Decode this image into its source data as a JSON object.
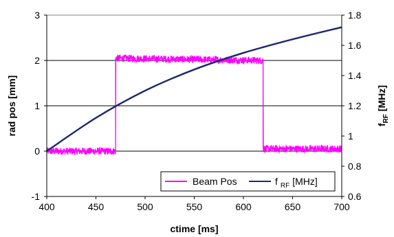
{
  "chart_data": {
    "type": "line",
    "title": "",
    "xlabel": "ctime [ms]",
    "ylabel_left": "rad pos [mm]",
    "ylabel_right_base": "f",
    "ylabel_right_sub": "RF",
    "ylabel_right_unit": "[MHz]",
    "xlim": [
      400,
      700
    ],
    "ylim_left": [
      -1,
      3
    ],
    "ylim_right": [
      0.6,
      1.8
    ],
    "xticks": [
      "400",
      "450",
      "500",
      "550",
      "600",
      "650",
      "700"
    ],
    "yticks_left": [
      "-1",
      "0",
      "1",
      "2",
      "3"
    ],
    "yticks_right": [
      "0.6",
      "0.8",
      "1",
      "1.2",
      "1.4",
      "1.6",
      "1.8"
    ],
    "grid": "horizontal major lines",
    "legend_placement": "bottom-right",
    "series": [
      {
        "name": "Beam Pos",
        "axis": "left",
        "color": "#ff00ff",
        "x": [
          400,
          470,
          470,
          620,
          620,
          700
        ],
        "y": [
          0,
          0,
          2.05,
          2.0,
          0.05,
          0.05
        ],
        "noise_amplitude": 0.08
      },
      {
        "legend_base": "f",
        "legend_sub": "RF",
        "legend_unit": "[MHz]",
        "axis": "right",
        "color": "#1f2a6e",
        "x": [
          400,
          450,
          500,
          550,
          600,
          650,
          700
        ],
        "y": [
          0.9,
          1.12,
          1.3,
          1.44,
          1.55,
          1.64,
          1.72
        ]
      }
    ]
  }
}
